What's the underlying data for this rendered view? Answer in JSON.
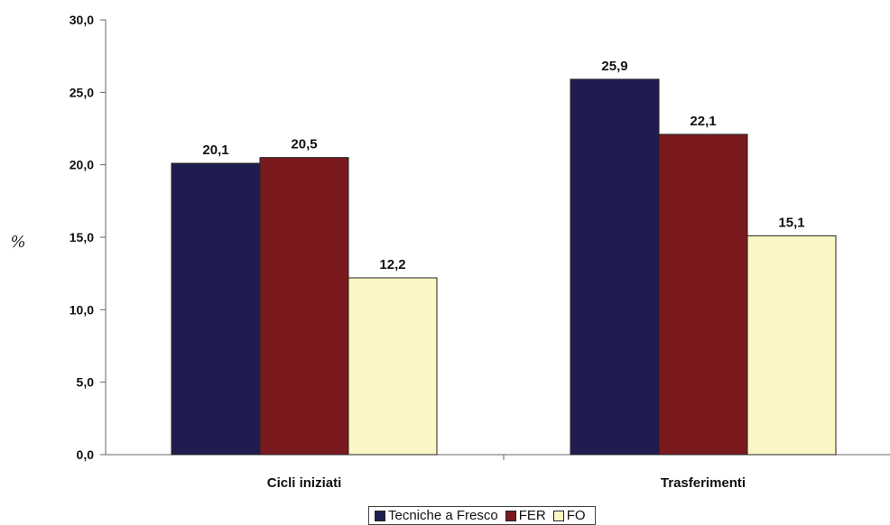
{
  "chart_data": {
    "type": "bar",
    "title": "",
    "xlabel": "",
    "ylabel": "%",
    "categories": [
      "Cicli iniziati",
      "Trasferimenti"
    ],
    "series": [
      {
        "name": "Tecniche a Fresco",
        "color": "#1f1d4f",
        "values": [
          20.1,
          25.9
        ],
        "labels": [
          "20,1",
          "25,9"
        ]
      },
      {
        "name": "FER",
        "color": "#7a1a1e",
        "values": [
          20.5,
          22.1
        ],
        "labels": [
          "20,5",
          "22,1"
        ]
      },
      {
        "name": "FO",
        "color": "#fbf7c4",
        "values": [
          12.2,
          15.1
        ],
        "labels": [
          "12,2",
          "15,1"
        ]
      }
    ],
    "ylim": [
      0,
      30
    ],
    "yticks": [
      0,
      5,
      10,
      15,
      20,
      25,
      30
    ],
    "ytick_labels": [
      "0,0",
      "5,0",
      "10,0",
      "15,0",
      "20,0",
      "25,0",
      "30,0"
    ],
    "grid": false,
    "legend_position": "bottom-center"
  }
}
